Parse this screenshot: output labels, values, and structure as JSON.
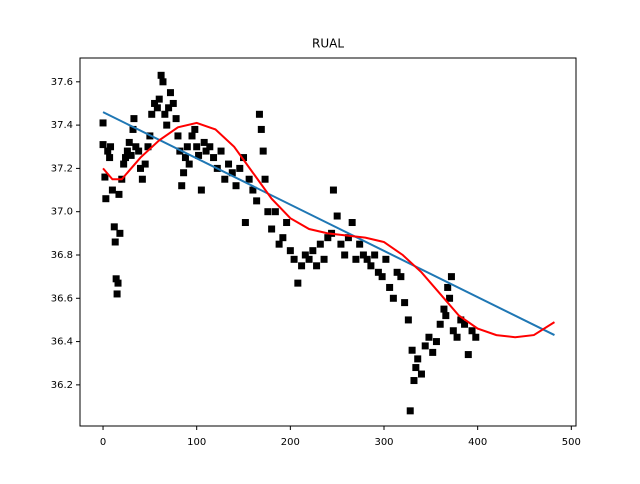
{
  "chart_data": {
    "type": "scatter",
    "title": "RUAL",
    "xlim": [
      -24.6,
      505
    ],
    "ylim": [
      36.01,
      37.71
    ],
    "xticks": [
      0,
      100,
      200,
      300,
      400,
      500
    ],
    "yticks": [
      36.2,
      36.4,
      36.6,
      36.8,
      {
        "value": 37,
        "label": "37.0"
      },
      37.2,
      37.4,
      37.6
    ],
    "series": [
      {
        "type": "scatter",
        "marker": "square",
        "color": "#000000",
        "x": [
          0,
          0,
          2,
          3,
          5,
          7,
          8,
          10,
          12,
          13,
          14,
          15,
          16,
          17,
          18,
          20,
          22,
          24,
          26,
          28,
          30,
          32,
          33,
          35,
          38,
          40,
          42,
          45,
          48,
          50,
          52,
          55,
          58,
          60,
          62,
          64,
          66,
          68,
          70,
          72,
          75,
          78,
          80,
          82,
          84,
          86,
          88,
          90,
          92,
          95,
          98,
          100,
          102,
          105,
          108,
          110,
          114,
          118,
          122,
          126,
          130,
          134,
          138,
          142,
          146,
          150,
          152,
          156,
          160,
          164,
          167,
          169,
          171,
          173,
          176,
          180,
          184,
          188,
          192,
          196,
          200,
          204,
          208,
          212,
          216,
          220,
          224,
          228,
          232,
          236,
          240,
          244,
          246,
          250,
          254,
          258,
          262,
          266,
          270,
          274,
          278,
          282,
          286,
          290,
          294,
          298,
          302,
          306,
          310,
          314,
          318,
          322,
          326,
          328,
          330,
          332,
          334,
          336,
          340,
          344,
          348,
          352,
          356,
          360,
          364,
          366,
          368,
          370,
          372,
          374,
          378,
          382,
          386,
          390,
          394,
          398
        ],
        "values": [
          37.41,
          37.31,
          37.16,
          37.06,
          37.28,
          37.25,
          37.3,
          37.1,
          36.93,
          36.86,
          36.69,
          36.62,
          36.67,
          37.08,
          36.9,
          37.15,
          37.22,
          37.25,
          37.28,
          37.32,
          37.26,
          37.38,
          37.43,
          37.3,
          37.28,
          37.2,
          37.15,
          37.22,
          37.3,
          37.35,
          37.45,
          37.5,
          37.48,
          37.52,
          37.63,
          37.6,
          37.45,
          37.4,
          37.48,
          37.55,
          37.5,
          37.43,
          37.35,
          37.28,
          37.12,
          37.18,
          37.25,
          37.3,
          37.22,
          37.35,
          37.38,
          37.3,
          37.26,
          37.1,
          37.32,
          37.28,
          37.3,
          37.25,
          37.2,
          37.28,
          37.15,
          37.22,
          37.18,
          37.12,
          37.2,
          37.25,
          36.95,
          37.15,
          37.1,
          37.05,
          37.45,
          37.38,
          37.28,
          37.15,
          37.0,
          36.92,
          37.0,
          36.85,
          36.88,
          36.95,
          36.82,
          36.78,
          36.67,
          36.75,
          36.8,
          36.78,
          36.82,
          36.75,
          36.85,
          36.78,
          36.88,
          36.9,
          37.1,
          36.98,
          36.85,
          36.8,
          36.88,
          36.95,
          36.78,
          36.85,
          36.8,
          36.78,
          36.75,
          36.8,
          36.72,
          36.7,
          36.78,
          36.65,
          36.6,
          36.72,
          36.7,
          36.58,
          36.5,
          36.08,
          36.36,
          36.22,
          36.28,
          36.32,
          36.25,
          36.38,
          36.42,
          36.35,
          36.4,
          36.48,
          36.55,
          36.52,
          36.65,
          36.6,
          36.7,
          36.45,
          36.42,
          36.5,
          36.48,
          36.34,
          36.45,
          36.42
        ]
      },
      {
        "type": "line",
        "color": "#1f77b4",
        "x": [
          0,
          482
        ],
        "values": [
          37.46,
          36.43
        ]
      },
      {
        "type": "line",
        "color": "#ff0000",
        "x": [
          0,
          10,
          20,
          40,
          60,
          80,
          100,
          120,
          140,
          160,
          180,
          200,
          220,
          240,
          260,
          280,
          300,
          320,
          340,
          360,
          380,
          400,
          420,
          440,
          460,
          482
        ],
        "values": [
          37.2,
          37.15,
          37.15,
          37.25,
          37.33,
          37.39,
          37.41,
          37.38,
          37.3,
          37.18,
          37.06,
          36.97,
          36.92,
          36.9,
          36.89,
          36.88,
          36.86,
          36.8,
          36.72,
          36.62,
          36.52,
          36.46,
          36.43,
          36.42,
          36.43,
          36.49
        ]
      }
    ]
  }
}
